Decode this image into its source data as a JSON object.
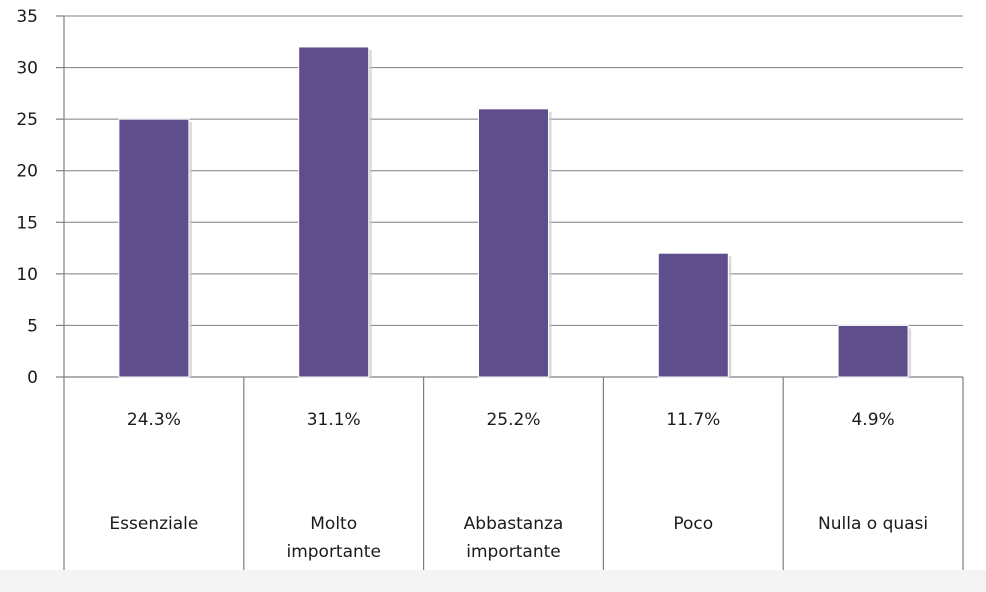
{
  "chart_data": {
    "type": "bar",
    "categories": [
      [
        "Essenziale"
      ],
      [
        "Molto",
        "importante"
      ],
      [
        "Abbastanza",
        "importante"
      ],
      [
        "Poco"
      ],
      [
        "Nulla o quasi"
      ]
    ],
    "percent_labels": [
      "24.3%",
      "31.1%",
      "25.2%",
      "11.7%",
      "4.9%"
    ],
    "values": [
      25,
      32,
      26,
      12,
      5
    ],
    "ylim": [
      0,
      35
    ],
    "yticks": [
      0,
      5,
      10,
      15,
      20,
      25,
      30,
      35
    ],
    "grid": true,
    "legend": "none",
    "bar_color": "#5e4e8b",
    "title": "",
    "xlabel": "",
    "ylabel": ""
  }
}
